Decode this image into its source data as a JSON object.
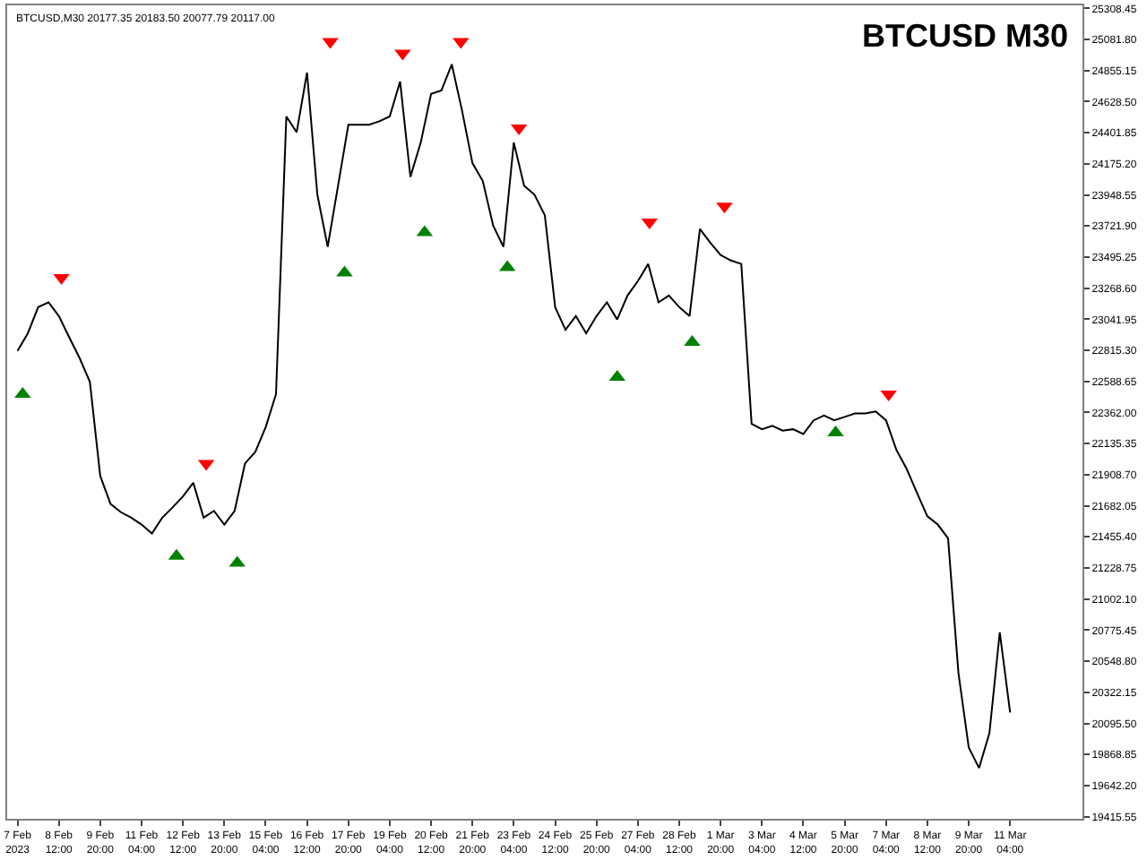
{
  "chart_data": {
    "type": "line",
    "title": "BTCUSD M30",
    "subtitle": "BTCUSD,M30 20177.35 20183.50 20077.79 20117.00",
    "xlim": [
      "2023-02-06T20:00",
      "2023-03-13T12:00"
    ],
    "xticks": [
      {
        "value": "2023-02-07T04:00",
        "label": "7 Feb 2023"
      },
      {
        "value": "2023-02-08T12:00",
        "label": "8 Feb 12:00"
      },
      {
        "value": "2023-02-09T20:00",
        "label": "9 Feb 20:00"
      },
      {
        "value": "2023-02-11T04:00",
        "label": "11 Feb 04:00"
      },
      {
        "value": "2023-02-12T12:00",
        "label": "12 Feb 12:00"
      },
      {
        "value": "2023-02-13T20:00",
        "label": "13 Feb 20:00"
      },
      {
        "value": "2023-02-15T04:00",
        "label": "15 Feb 04:00"
      },
      {
        "value": "2023-02-16T12:00",
        "label": "16 Feb 12:00"
      },
      {
        "value": "2023-02-17T20:00",
        "label": "17 Feb 20:00"
      },
      {
        "value": "2023-02-19T04:00",
        "label": "19 Feb 04:00"
      },
      {
        "value": "2023-02-20T12:00",
        "label": "20 Feb 12:00"
      },
      {
        "value": "2023-02-21T20:00",
        "label": "21 Feb 20:00"
      },
      {
        "value": "2023-02-23T04:00",
        "label": "23 Feb 04:00"
      },
      {
        "value": "2023-02-24T12:00",
        "label": "24 Feb 12:00"
      },
      {
        "value": "2023-02-25T20:00",
        "label": "25 Feb 20:00"
      },
      {
        "value": "2023-02-27T04:00",
        "label": "27 Feb 04:00"
      },
      {
        "value": "2023-02-28T12:00",
        "label": "28 Feb 12:00"
      },
      {
        "value": "2023-03-01T20:00",
        "label": "1 Mar 20:00"
      },
      {
        "value": "2023-03-03T04:00",
        "label": "3 Mar 04:00"
      },
      {
        "value": "2023-03-04T12:00",
        "label": "4 Mar 12:00"
      },
      {
        "value": "2023-03-05T20:00",
        "label": "5 Mar 20:00"
      },
      {
        "value": "2023-03-07T04:00",
        "label": "7 Mar 04:00"
      },
      {
        "value": "2023-03-08T12:00",
        "label": "8 Mar 12:00"
      },
      {
        "value": "2023-03-09T20:00",
        "label": "9 Mar 20:00"
      },
      {
        "value": "2023-03-11T04:00",
        "label": "11 Mar 04:00"
      }
    ],
    "ylim": [
      19400,
      25330
    ],
    "yticks": [
      {
        "value": 19415.55,
        "label": "19415.55"
      },
      {
        "value": 19642.2,
        "label": "19642.20"
      },
      {
        "value": 19868.85,
        "label": "19868.85"
      },
      {
        "value": 20095.5,
        "label": "20095.50"
      },
      {
        "value": 20322.15,
        "label": "20322.15"
      },
      {
        "value": 20548.8,
        "label": "20548.80"
      },
      {
        "value": 20775.45,
        "label": "20775.45"
      },
      {
        "value": 21002.1,
        "label": "21002.10"
      },
      {
        "value": 21228.75,
        "label": "21228.75"
      },
      {
        "value": 21455.4,
        "label": "21455.40"
      },
      {
        "value": 21682.05,
        "label": "21682.05"
      },
      {
        "value": 21908.7,
        "label": "21908.70"
      },
      {
        "value": 22135.35,
        "label": "22135.35"
      },
      {
        "value": 22362.0,
        "label": "22362.00"
      },
      {
        "value": 22588.65,
        "label": "22588.65"
      },
      {
        "value": 22815.3,
        "label": "22815.30"
      },
      {
        "value": 23041.95,
        "label": "23041.95"
      },
      {
        "value": 23268.6,
        "label": "23268.60"
      },
      {
        "value": 23495.25,
        "label": "23495.25"
      },
      {
        "value": 23721.9,
        "label": "23721.90"
      },
      {
        "value": 23948.55,
        "label": "23948.55"
      },
      {
        "value": 24175.2,
        "label": "24175.20"
      },
      {
        "value": 24401.85,
        "label": "24401.85"
      },
      {
        "value": 24628.5,
        "label": "24628.50"
      },
      {
        "value": 24855.15,
        "label": "24855.15"
      },
      {
        "value": 25081.8,
        "label": "25081.80"
      },
      {
        "value": 25308.45,
        "label": "25308.45"
      }
    ],
    "series": [
      {
        "color": "#000000",
        "marker": "none",
        "line_style": "solid",
        "x": [
          "2023-02-07T04:00",
          "2023-02-07T12:00",
          "2023-02-07T20:00",
          "2023-02-08T04:00",
          "2023-02-08T12:00",
          "2023-02-08T20:00",
          "2023-02-09T04:00",
          "2023-02-09T12:00",
          "2023-02-09T20:00",
          "2023-02-10T04:00",
          "2023-02-10T12:00",
          "2023-02-10T20:00",
          "2023-02-11T04:00",
          "2023-02-11T12:00",
          "2023-02-11T20:00",
          "2023-02-12T04:00",
          "2023-02-12T12:00",
          "2023-02-12T20:00",
          "2023-02-13T04:00",
          "2023-02-13T12:00",
          "2023-02-13T20:00",
          "2023-02-14T04:00",
          "2023-02-14T12:00",
          "2023-02-14T20:00",
          "2023-02-15T04:00",
          "2023-02-15T12:00",
          "2023-02-15T20:00",
          "2023-02-16T04:00",
          "2023-02-16T12:00",
          "2023-02-16T20:00",
          "2023-02-17T04:00",
          "2023-02-17T12:00",
          "2023-02-17T20:00",
          "2023-02-18T04:00",
          "2023-02-18T12:00",
          "2023-02-18T20:00",
          "2023-02-19T04:00",
          "2023-02-19T12:00",
          "2023-02-19T20:00",
          "2023-02-20T04:00",
          "2023-02-20T12:00",
          "2023-02-20T20:00",
          "2023-02-21T04:00",
          "2023-02-21T12:00",
          "2023-02-21T20:00",
          "2023-02-22T04:00",
          "2023-02-22T12:00",
          "2023-02-22T20:00",
          "2023-02-23T04:00",
          "2023-02-23T12:00",
          "2023-02-23T20:00",
          "2023-02-24T04:00",
          "2023-02-24T12:00",
          "2023-02-24T20:00",
          "2023-02-25T04:00",
          "2023-02-25T12:00",
          "2023-02-25T20:00",
          "2023-02-26T04:00",
          "2023-02-26T12:00",
          "2023-02-26T20:00",
          "2023-02-27T04:00",
          "2023-02-27T12:00",
          "2023-02-27T20:00",
          "2023-02-28T04:00",
          "2023-02-28T12:00",
          "2023-02-28T20:00",
          "2023-03-01T04:00",
          "2023-03-01T12:00",
          "2023-03-01T20:00",
          "2023-03-02T04:00",
          "2023-03-02T12:00",
          "2023-03-02T20:00",
          "2023-03-03T04:00",
          "2023-03-03T12:00",
          "2023-03-03T20:00",
          "2023-03-04T04:00",
          "2023-03-04T12:00",
          "2023-03-04T20:00",
          "2023-03-05T04:00",
          "2023-03-05T12:00",
          "2023-03-05T20:00",
          "2023-03-06T04:00",
          "2023-03-06T12:00",
          "2023-03-06T20:00",
          "2023-03-07T04:00",
          "2023-03-07T12:00",
          "2023-03-07T20:00",
          "2023-03-08T04:00",
          "2023-03-08T12:00",
          "2023-03-08T20:00",
          "2023-03-09T04:00",
          "2023-03-09T12:00",
          "2023-03-09T20:00",
          "2023-03-10T04:00",
          "2023-03-10T12:00",
          "2023-03-10T20:00",
          "2023-03-11T04:00"
        ],
        "values": [
          22810,
          22940,
          23130,
          23165,
          23065,
          22910,
          22760,
          22585,
          21900,
          21695,
          21635,
          21595,
          21545,
          21480,
          21595,
          21670,
          21750,
          21850,
          21595,
          21645,
          21545,
          21645,
          21990,
          22075,
          22255,
          22495,
          24520,
          24405,
          24840,
          23950,
          23570,
          24015,
          24460,
          24460,
          24460,
          24485,
          24520,
          24775,
          24080,
          24330,
          24685,
          24710,
          24900,
          24560,
          24180,
          24050,
          23725,
          23570,
          24330,
          24015,
          23950,
          23800,
          23130,
          22965,
          23065,
          22940,
          23065,
          23165,
          23040,
          23215,
          23320,
          23445,
          23165,
          23215,
          23130,
          23065,
          23700,
          23600,
          23510,
          23470,
          23445,
          22280,
          22240,
          22265,
          22230,
          22240,
          22205,
          22305,
          22340,
          22305,
          22330,
          22355,
          22355,
          22370,
          22305,
          22090,
          21950,
          21775,
          21605,
          21545,
          21445,
          20465,
          19920,
          19770,
          20025,
          20760,
          20175
        ]
      },
      {
        "type": "scatter",
        "color": "#ff0000",
        "marker": "triangle-down",
        "x": [
          "2023-02-08T14:00",
          "2023-02-13T06:00",
          "2023-02-17T06:00",
          "2023-02-19T14:00",
          "2023-02-21T11:00",
          "2023-02-23T08:00",
          "2023-02-27T13:00",
          "2023-03-01T23:00",
          "2023-03-07T06:00"
        ],
        "values": [
          23345,
          21990,
          25065,
          24980,
          25065,
          24435,
          23750,
          23865,
          22495
        ]
      },
      {
        "type": "scatter",
        "color": "#008000",
        "marker": "triangle-up",
        "x": [
          "2023-02-07T08:00",
          "2023-02-12T07:00",
          "2023-02-14T06:00",
          "2023-02-17T17:00",
          "2023-02-20T07:00",
          "2023-02-22T23:00",
          "2023-02-26T12:00",
          "2023-02-28T22:00",
          "2023-03-05T13:00"
        ],
        "values": [
          22495,
          21315,
          21265,
          23380,
          23675,
          23420,
          22620,
          22875,
          22215
        ]
      }
    ]
  }
}
